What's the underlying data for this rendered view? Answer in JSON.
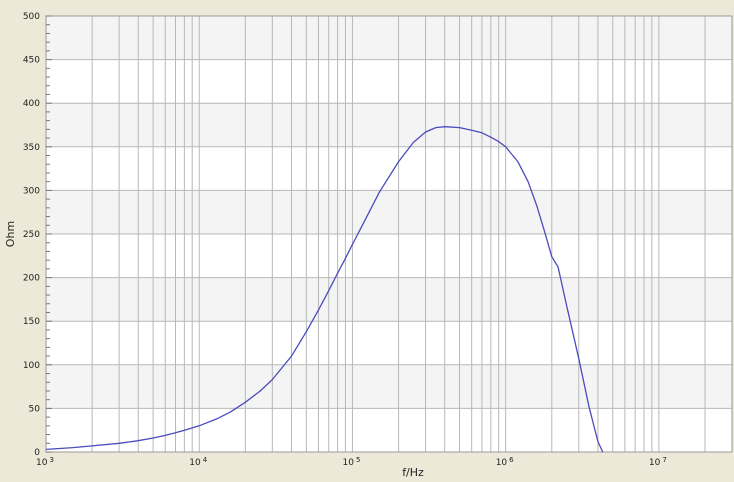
{
  "chart_data": {
    "type": "line",
    "title": "",
    "xlabel": "f/Hz",
    "ylabel": "Ohm",
    "x_scale": "log",
    "xlim": [
      1000,
      30000000
    ],
    "ylim": [
      0,
      500
    ],
    "grid": true,
    "y_ticks": [
      0,
      50,
      100,
      150,
      200,
      250,
      300,
      350,
      400,
      450,
      500
    ],
    "y_tick_labels": [
      "0",
      "50",
      "100",
      "150",
      "200",
      "250",
      "300",
      "350",
      "400",
      "450",
      "500"
    ],
    "x_ticks": [
      1000,
      10000,
      100000,
      1000000,
      10000000
    ],
    "x_tick_labels": [
      {
        "base": "10",
        "exp": "3"
      },
      {
        "base": "10",
        "exp": "4"
      },
      {
        "base": "10",
        "exp": "5"
      },
      {
        "base": "10",
        "exp": "6"
      },
      {
        "base": "10",
        "exp": "7"
      }
    ],
    "series": [
      {
        "color": "#4b4bbd",
        "x": [
          1000,
          1500,
          2000,
          3000,
          4000,
          5000,
          6000,
          7000,
          8000,
          10000,
          13000,
          16000,
          20000,
          25000,
          30000,
          40000,
          50000,
          60000,
          70000,
          80000,
          90000,
          100000,
          120000,
          150000,
          200000,
          250000,
          300000,
          350000,
          400000,
          500000,
          600000,
          700000,
          800000,
          900000,
          1000000,
          1200000,
          1400000,
          1600000,
          1800000,
          2000000,
          2200000,
          2500000,
          3000000,
          3500000,
          4000000,
          4300000
        ],
        "y": [
          3,
          5,
          7,
          10,
          13,
          16,
          19,
          22,
          25,
          30,
          38,
          46,
          57,
          70,
          83,
          110,
          138,
          163,
          185,
          205,
          222,
          238,
          265,
          298,
          333,
          355,
          367,
          372,
          373,
          372,
          369,
          366,
          361,
          356,
          350,
          333,
          310,
          282,
          252,
          224,
          212,
          168,
          107,
          52,
          12,
          0
        ]
      }
    ]
  }
}
